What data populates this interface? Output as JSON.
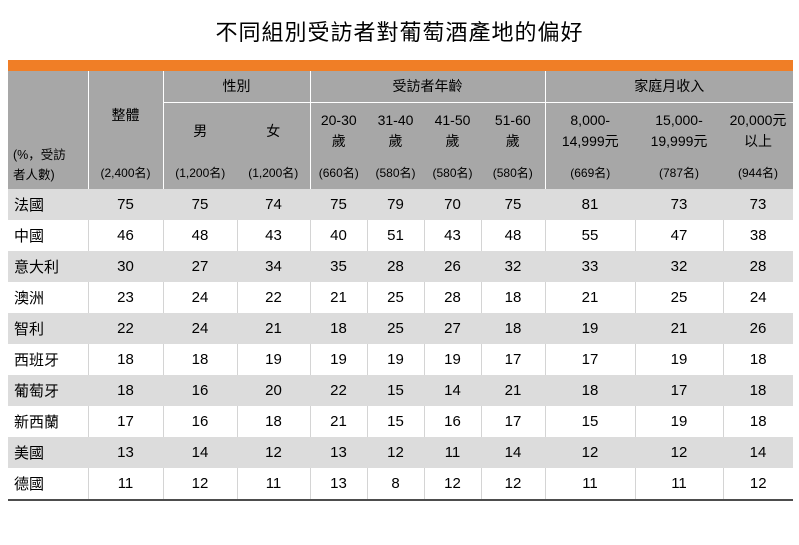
{
  "title": "不同組別受訪者對葡萄酒產地的偏好",
  "corner_label": "(%，受訪\n者人數)",
  "colors": {
    "accent_orange": "#F07E26",
    "header_gray": "#A7A7A7",
    "stripe_gray": "#DCDCDC",
    "bottom_line": "#4D4D4D"
  },
  "header": {
    "overall": {
      "label": "整體",
      "count": "(2,400名)"
    },
    "groups": [
      {
        "label": "性別",
        "span": 2
      },
      {
        "label": "受訪者年齡",
        "span": 4
      },
      {
        "label": "家庭月收入",
        "span": 3
      }
    ],
    "subcolumns": [
      {
        "label": "男",
        "count": "(1,200名)"
      },
      {
        "label": "女",
        "count": "(1,200名)"
      },
      {
        "label": "20-30\n歲",
        "count": "(660名)"
      },
      {
        "label": "31-40\n歲",
        "count": "(580名)"
      },
      {
        "label": "41-50\n歲",
        "count": "(580名)"
      },
      {
        "label": "51-60\n歲",
        "count": "(580名)"
      },
      {
        "label": "8,000-\n14,999元",
        "count": "(669名)"
      },
      {
        "label": "15,000-\n19,999元",
        "count": "(787名)"
      },
      {
        "label": "20,000元\n以上",
        "count": "(944名)"
      }
    ]
  },
  "chart_data": {
    "type": "table",
    "title": "不同組別受訪者對葡萄酒產地的偏好",
    "unit_note": "(%，受訪者人數)",
    "columns": [
      "整體 (2,400名)",
      "男 (1,200名)",
      "女 (1,200名)",
      "20-30歲 (660名)",
      "31-40歲 (580名)",
      "41-50歲 (580名)",
      "51-60歲 (580名)",
      "8,000-14,999元 (669名)",
      "15,000-19,999元 (787名)",
      "20,000元以上 (944名)"
    ],
    "rows": [
      {
        "label": "法國",
        "values": [
          75,
          75,
          74,
          75,
          79,
          70,
          75,
          81,
          73,
          73
        ]
      },
      {
        "label": "中國",
        "values": [
          46,
          48,
          43,
          40,
          51,
          43,
          48,
          55,
          47,
          38
        ]
      },
      {
        "label": "意大利",
        "values": [
          30,
          27,
          34,
          35,
          28,
          26,
          32,
          33,
          32,
          28
        ]
      },
      {
        "label": "澳洲",
        "values": [
          23,
          24,
          22,
          21,
          25,
          28,
          18,
          21,
          25,
          24
        ]
      },
      {
        "label": "智利",
        "values": [
          22,
          24,
          21,
          18,
          25,
          27,
          18,
          19,
          21,
          26
        ]
      },
      {
        "label": "西班牙",
        "values": [
          18,
          18,
          19,
          19,
          19,
          19,
          17,
          17,
          19,
          18
        ]
      },
      {
        "label": "葡萄牙",
        "values": [
          18,
          16,
          20,
          22,
          15,
          14,
          21,
          18,
          17,
          18
        ]
      },
      {
        "label": "新西蘭",
        "values": [
          17,
          16,
          18,
          21,
          15,
          16,
          17,
          15,
          19,
          18
        ]
      },
      {
        "label": "美國",
        "values": [
          13,
          14,
          12,
          13,
          12,
          11,
          14,
          12,
          12,
          14
        ]
      },
      {
        "label": "德國",
        "values": [
          11,
          12,
          11,
          13,
          8,
          12,
          12,
          11,
          11,
          12
        ]
      }
    ]
  }
}
